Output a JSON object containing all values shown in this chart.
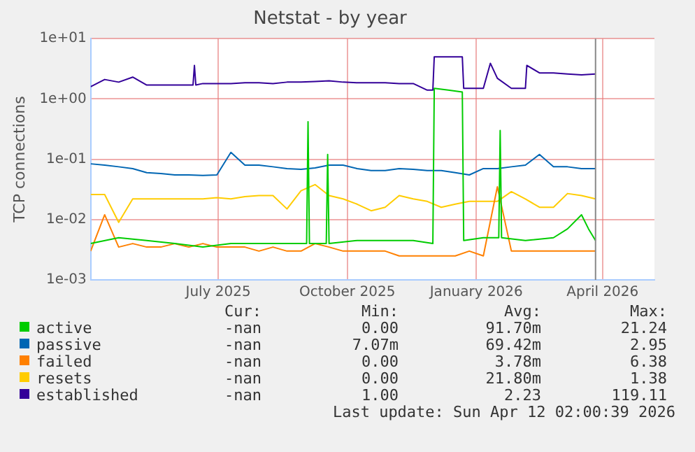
{
  "chart_data": {
    "type": "line",
    "title": "Netstat - by year",
    "ylabel": "TCP connections",
    "log": "y",
    "grid": true,
    "legend": "bottom left",
    "marker": "none",
    "line_style": "solid",
    "xlim": [
      "2025-04-01",
      "2026-05-08"
    ],
    "xticks": [
      {
        "value": "2025-07-01",
        "label": "July 2025"
      },
      {
        "value": "2025-10-01",
        "label": "October 2025"
      },
      {
        "value": "2026-01-01",
        "label": "January 2026"
      },
      {
        "value": "2026-04-01",
        "label": "April 2026"
      }
    ],
    "ylim": [
      0.001,
      10
    ],
    "yticks": [
      {
        "value": 0.001,
        "label": "1e-03"
      },
      {
        "value": 0.01,
        "label": "1e-02"
      },
      {
        "value": 0.1,
        "label": "1e-01"
      },
      {
        "value": 1,
        "label": "1e+00"
      },
      {
        "value": 10,
        "label": "1e+01"
      }
    ],
    "x": [
      "2025-04-01",
      "2025-04-11",
      "2025-04-21",
      "2025-05-01",
      "2025-05-11",
      "2025-05-21",
      "2025-05-31",
      "2025-06-10",
      "2025-06-20",
      "2025-06-30",
      "2025-07-10",
      "2025-07-20",
      "2025-07-30",
      "2025-08-09",
      "2025-08-19",
      "2025-08-29",
      "2025-09-08",
      "2025-09-18",
      "2025-09-28",
      "2025-10-08",
      "2025-10-18",
      "2025-10-28",
      "2025-11-07",
      "2025-11-17",
      "2025-11-27",
      "2025-12-07",
      "2025-12-17",
      "2025-12-27",
      "2026-01-06",
      "2026-01-16",
      "2026-01-26",
      "2026-02-05",
      "2026-02-15",
      "2026-02-25",
      "2026-03-07",
      "2026-03-17",
      "2026-03-27"
    ],
    "ref_lines": [
      {
        "axis": "x",
        "value": "2026-03-27",
        "color": "#888888"
      }
    ],
    "series": [
      {
        "name": "active",
        "color": "#00cc00",
        "x": [
          "2025-04-01",
          "2025-04-21",
          "2025-05-11",
          "2025-05-31",
          "2025-06-20",
          "2025-07-10",
          "2025-07-30",
          "2025-08-19",
          "2025-09-02",
          "2025-09-03",
          "2025-09-04",
          "2025-09-16",
          "2025-09-17",
          "2025-09-18",
          "2025-10-08",
          "2025-10-28",
          "2025-11-17",
          "2025-12-01",
          "2025-12-02",
          "2025-12-12",
          "2025-12-22",
          "2025-12-23",
          "2026-01-06",
          "2026-01-17",
          "2026-01-18",
          "2026-01-19",
          "2026-02-05",
          "2026-02-25",
          "2026-03-07",
          "2026-03-17",
          "2026-03-22",
          "2026-03-27"
        ],
        "values": [
          0.004,
          0.005,
          0.0045,
          0.004,
          0.0035,
          0.004,
          0.004,
          0.004,
          0.004,
          0.42,
          0.004,
          0.004,
          0.12,
          0.004,
          0.0045,
          0.0045,
          0.0045,
          0.004,
          1.5,
          1.4,
          1.3,
          0.0045,
          0.005,
          0.005,
          0.3,
          0.005,
          0.0045,
          0.005,
          0.007,
          0.012,
          0.007,
          0.0045
        ]
      },
      {
        "name": "passive",
        "color": "#0066b3",
        "values": [
          0.084,
          0.08,
          0.075,
          0.07,
          0.06,
          0.058,
          0.055,
          0.055,
          0.054,
          0.055,
          0.13,
          0.08,
          0.08,
          0.075,
          0.07,
          0.068,
          0.072,
          0.08,
          0.08,
          0.07,
          0.065,
          0.065,
          0.07,
          0.068,
          0.065,
          0.065,
          0.06,
          0.055,
          0.07,
          0.07,
          0.075,
          0.08,
          0.12,
          0.075,
          0.075,
          0.07,
          0.07
        ]
      },
      {
        "name": "failed",
        "color": "#ff8000",
        "values": [
          0.003,
          0.012,
          0.0035,
          0.004,
          0.0035,
          0.0035,
          0.004,
          0.0035,
          0.004,
          0.0035,
          0.0035,
          0.0035,
          0.003,
          0.0035,
          0.003,
          0.003,
          0.004,
          0.0035,
          0.003,
          0.003,
          0.003,
          0.003,
          0.0025,
          0.0025,
          0.0025,
          0.0025,
          0.0025,
          0.003,
          0.0025,
          0.035,
          0.003,
          0.003,
          0.003,
          0.003,
          0.003,
          0.003,
          0.003
        ]
      },
      {
        "name": "resets",
        "color": "#ffcc00",
        "values": [
          0.026,
          0.026,
          0.009,
          0.022,
          0.022,
          0.022,
          0.022,
          0.022,
          0.022,
          0.023,
          0.022,
          0.024,
          0.025,
          0.025,
          0.015,
          0.03,
          0.038,
          0.025,
          0.022,
          0.018,
          0.014,
          0.016,
          0.025,
          0.022,
          0.02,
          0.016,
          0.018,
          0.02,
          0.02,
          0.02,
          0.029,
          0.022,
          0.016,
          0.016,
          0.027,
          0.025,
          0.022
        ]
      },
      {
        "name": "established",
        "color": "#330099",
        "x": [
          "2025-04-01",
          "2025-04-11",
          "2025-04-21",
          "2025-05-01",
          "2025-05-11",
          "2025-05-21",
          "2025-05-31",
          "2025-06-10",
          "2025-06-13",
          "2025-06-14",
          "2025-06-15",
          "2025-06-20",
          "2025-06-30",
          "2025-07-10",
          "2025-07-20",
          "2025-07-30",
          "2025-08-09",
          "2025-08-19",
          "2025-08-29",
          "2025-09-08",
          "2025-09-18",
          "2025-09-28",
          "2025-10-08",
          "2025-10-18",
          "2025-10-28",
          "2025-11-07",
          "2025-11-17",
          "2025-11-27",
          "2025-12-01",
          "2025-12-02",
          "2025-12-22",
          "2025-12-23",
          "2026-01-06",
          "2026-01-11",
          "2026-01-16",
          "2026-01-26",
          "2026-02-05",
          "2026-02-06",
          "2026-02-15",
          "2026-02-25",
          "2026-03-07",
          "2026-03-17",
          "2026-03-27"
        ],
        "values": [
          1.6,
          2.1,
          1.9,
          2.3,
          1.7,
          1.7,
          1.7,
          1.7,
          1.7,
          3.6,
          1.7,
          1.8,
          1.8,
          1.8,
          1.85,
          1.85,
          1.8,
          1.9,
          1.9,
          1.95,
          2,
          1.9,
          1.85,
          1.85,
          1.85,
          1.8,
          1.8,
          1.4,
          1.4,
          5,
          5,
          1.5,
          1.5,
          3.9,
          2.2,
          1.5,
          1.5,
          3.6,
          2.7,
          2.7,
          2.6,
          2.5,
          2.6
        ]
      }
    ],
    "annotations": [
      "Cur:",
      "Min:",
      "Avg:",
      "Max:",
      "-nan",
      "0.00",
      "91.70m",
      "21.24",
      "-nan",
      "7.07m",
      "69.42m",
      "2.95",
      "-nan",
      "0.00",
      "3.78m",
      "6.38",
      "-nan",
      "0.00",
      "21.80m",
      "1.38",
      "-nan",
      "1.00",
      "2.23",
      "119.11",
      "Last update: Sun Apr 12 02:00:39 2026"
    ]
  }
}
